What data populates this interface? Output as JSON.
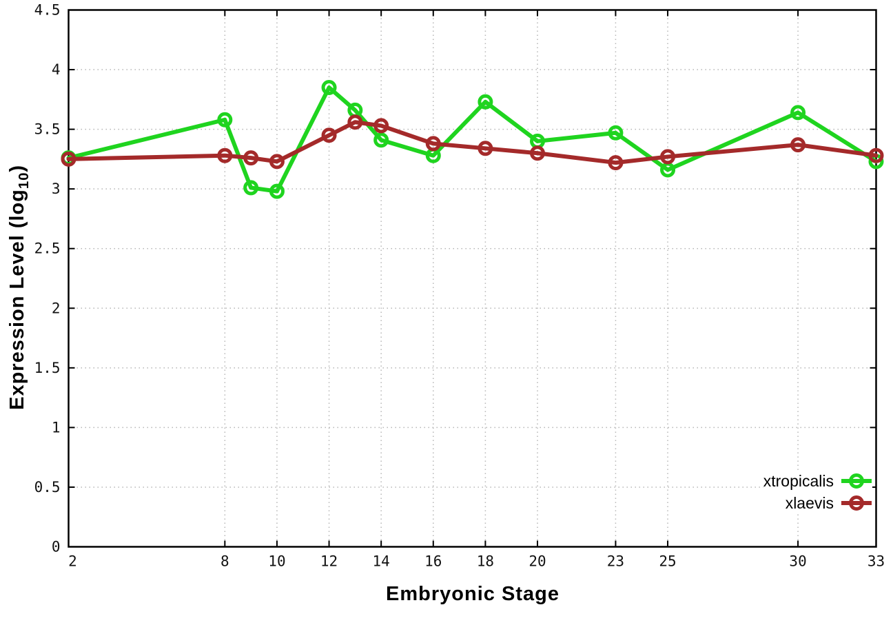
{
  "chart_data": {
    "type": "line",
    "title": "",
    "xlabel": "Embryonic Stage",
    "ylabel": "Expression Level (log10)",
    "ylabel_parts": {
      "prefix": "Expression Level (log",
      "subscript": "10",
      "suffix": ")"
    },
    "xlim": [
      2,
      33
    ],
    "ylim": [
      0,
      4.5
    ],
    "grid": true,
    "legend_position": "bottom-right",
    "x_ticks": [
      2,
      8,
      10,
      12,
      14,
      16,
      18,
      20,
      23,
      25,
      30,
      33
    ],
    "y_ticks": [
      0,
      0.5,
      1,
      1.5,
      2,
      2.5,
      3,
      3.5,
      4,
      4.5
    ],
    "x": [
      2,
      8,
      9,
      10,
      12,
      13,
      14,
      16,
      18,
      20,
      23,
      25,
      30,
      33
    ],
    "series": [
      {
        "name": "xtropicalis",
        "color": "#1fd41f",
        "values": [
          3.26,
          3.58,
          3.01,
          2.98,
          3.85,
          3.66,
          3.41,
          3.28,
          3.73,
          3.4,
          3.47,
          3.16,
          3.64,
          3.23
        ]
      },
      {
        "name": "xlaevis",
        "color": "#a42a2a",
        "values": [
          3.25,
          3.28,
          3.26,
          3.23,
          3.45,
          3.56,
          3.53,
          3.38,
          3.34,
          3.3,
          3.22,
          3.27,
          3.37,
          3.28
        ]
      }
    ],
    "colors": {
      "grid": "#b5b5b5",
      "axis": "#000000",
      "tick_text": "#111111"
    }
  },
  "legend": {
    "items": [
      {
        "label": "xtropicalis"
      },
      {
        "label": "xlaevis"
      }
    ]
  }
}
